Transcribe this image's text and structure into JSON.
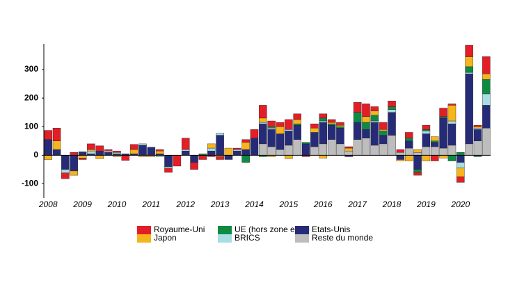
{
  "chart_data": {
    "type": "stacked-bar",
    "categories": [
      "2008",
      null,
      null,
      null,
      "2009",
      null,
      null,
      null,
      "2010",
      null,
      null,
      null,
      "2011",
      null,
      null,
      null,
      "2012",
      null,
      null,
      null,
      "2013",
      null,
      null,
      null,
      "2014",
      null,
      null,
      null,
      "2015",
      null,
      null,
      null,
      "2016",
      null,
      null,
      null,
      "2017",
      null,
      null,
      null,
      "2018",
      null,
      null,
      null,
      "2019",
      null,
      null,
      null,
      "2020",
      null,
      null,
      null
    ],
    "series": [
      {
        "name": "Royaume-Uni",
        "color": "#e41e26",
        "values": [
          32,
          45,
          -20,
          10,
          -5,
          20,
          18,
          5,
          5,
          -18,
          18,
          0,
          0,
          5,
          -15,
          -38,
          40,
          -25,
          -15,
          -5,
          -10,
          0,
          5,
          10,
          30,
          45,
          20,
          15,
          35,
          20,
          -5,
          15,
          15,
          10,
          10,
          5,
          35,
          45,
          15,
          25,
          20,
          10,
          20,
          -10,
          15,
          -20,
          30,
          5,
          -20,
          40,
          5,
          60
        ]
      },
      {
        "name": "Japon",
        "color": "#f6b51c",
        "values": [
          -15,
          30,
          0,
          -15,
          -10,
          5,
          -12,
          0,
          -5,
          0,
          15,
          -5,
          -5,
          10,
          0,
          0,
          0,
          0,
          0,
          15,
          -5,
          25,
          0,
          25,
          0,
          15,
          -5,
          25,
          -12,
          15,
          0,
          15,
          -10,
          5,
          5,
          10,
          0,
          20,
          15,
          5,
          0,
          -5,
          -20,
          10,
          -20,
          15,
          -10,
          55,
          -30,
          35,
          5,
          20
        ]
      },
      {
        "name": "UE (hors zone euro)",
        "color": "#0d8b43",
        "values": [
          0,
          0,
          0,
          0,
          0,
          0,
          0,
          0,
          0,
          0,
          0,
          0,
          0,
          0,
          0,
          0,
          0,
          0,
          5,
          0,
          0,
          0,
          0,
          -25,
          0,
          -5,
          5,
          0,
          0,
          5,
          5,
          0,
          10,
          5,
          5,
          0,
          35,
          25,
          20,
          15,
          10,
          0,
          10,
          -10,
          5,
          5,
          5,
          -20,
          10,
          20,
          -5,
          50
        ]
      },
      {
        "name": "BRICS",
        "color": "#a8dde3",
        "values": [
          0,
          0,
          -12,
          0,
          0,
          10,
          0,
          5,
          5,
          0,
          0,
          5,
          0,
          -5,
          -5,
          0,
          5,
          0,
          0,
          10,
          8,
          0,
          5,
          0,
          0,
          5,
          5,
          0,
          5,
          0,
          0,
          0,
          5,
          0,
          0,
          0,
          0,
          0,
          5,
          0,
          10,
          0,
          0,
          0,
          10,
          0,
          0,
          10,
          -20,
          5,
          5,
          40
        ]
      },
      {
        "name": "Etats-Unis",
        "color": "#262b78",
        "values": [
          55,
          20,
          -50,
          -55,
          12,
          5,
          15,
          10,
          5,
          5,
          5,
          35,
          28,
          5,
          -40,
          0,
          15,
          -25,
          0,
          15,
          70,
          -15,
          15,
          20,
          60,
          70,
          60,
          55,
          50,
          50,
          40,
          50,
          75,
          50,
          55,
          -5,
          60,
          30,
          80,
          30,
          80,
          -15,
          25,
          -50,
          45,
          15,
          105,
          75,
          -25,
          245,
          40,
          80
        ]
      },
      {
        "name": "Reste du monde",
        "color": "#bdbdbd",
        "values": [
          0,
          0,
          0,
          0,
          0,
          0,
          0,
          0,
          0,
          0,
          0,
          0,
          0,
          0,
          0,
          0,
          0,
          0,
          0,
          0,
          0,
          0,
          0,
          0,
          0,
          40,
          30,
          20,
          35,
          55,
          0,
          30,
          40,
          55,
          40,
          15,
          55,
          60,
          35,
          40,
          70,
          10,
          25,
          10,
          30,
          30,
          25,
          35,
          0,
          40,
          50,
          95
        ]
      }
    ],
    "ylim": [
      -150,
      390
    ],
    "yticks": [
      -100,
      0,
      100,
      200,
      300
    ]
  }
}
